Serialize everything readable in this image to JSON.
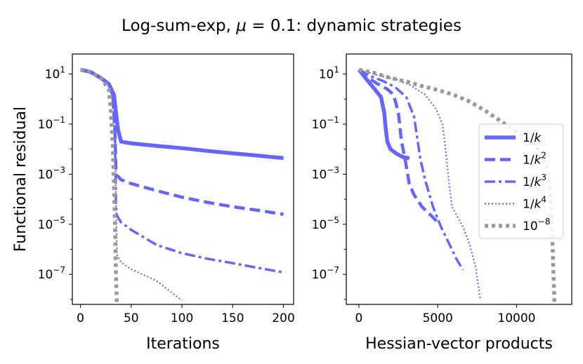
{
  "chart_data": {
    "title": "Log-sum-exp, μ = 0.1: dynamic strategies",
    "title_parts": {
      "lead": "Log-sum-exp, ",
      "mu": "μ",
      "rest": " = 0.1: dynamic strategies"
    },
    "series_color": "#6666ff",
    "baseline_color": "#999999",
    "panels": [
      {
        "type": "line",
        "yscale": "log",
        "xlabel": "Iterations",
        "ylabel": "Functional residual",
        "xlim": [
          -8,
          210
        ],
        "ylim_exp": [
          -8.2,
          1.8
        ],
        "xticks": [
          0,
          50,
          100,
          150,
          200
        ],
        "yticks_exp": [
          1,
          -1,
          -3,
          -5,
          -7
        ],
        "series": [
          {
            "name": "1/k",
            "points": [
              [
                0,
                15
              ],
              [
                10,
                12
              ],
              [
                20,
                7
              ],
              [
                28,
                4
              ],
              [
                33,
                1.5
              ],
              [
                35,
                0.3
              ],
              [
                37,
                0.06
              ],
              [
                40,
                0.02
              ],
              [
                50,
                0.017
              ],
              [
                75,
                0.0135
              ],
              [
                100,
                0.011
              ],
              [
                125,
                0.0085
              ],
              [
                150,
                0.0068
              ],
              [
                175,
                0.0055
              ],
              [
                200,
                0.0044
              ]
            ]
          },
          {
            "name": "1/k^2",
            "points": [
              [
                0,
                15
              ],
              [
                10,
                12
              ],
              [
                20,
                7
              ],
              [
                28,
                4
              ],
              [
                32,
                1.2
              ],
              [
                34,
                0.04
              ],
              [
                35,
                0.0015
              ],
              [
                36,
                0.0009
              ],
              [
                40,
                0.0006
              ],
              [
                50,
                0.00042
              ],
              [
                75,
                0.00022
              ],
              [
                100,
                0.00012
              ],
              [
                125,
                7.5e-05
              ],
              [
                150,
                5e-05
              ],
              [
                175,
                3.6e-05
              ],
              [
                200,
                2.5e-05
              ]
            ]
          },
          {
            "name": "1/k^3",
            "points": [
              [
                0,
                15
              ],
              [
                10,
                12
              ],
              [
                20,
                7
              ],
              [
                28,
                4
              ],
              [
                32,
                1.2
              ],
              [
                34,
                0.04
              ],
              [
                35,
                5e-05
              ],
              [
                36,
                2.2e-05
              ],
              [
                40,
                1.2e-05
              ],
              [
                50,
                6e-06
              ],
              [
                75,
                1.5e-06
              ],
              [
                100,
                7e-07
              ],
              [
                125,
                4.2e-07
              ],
              [
                150,
                2.8e-07
              ],
              [
                175,
                1.8e-07
              ],
              [
                200,
                1.2e-07
              ]
            ]
          },
          {
            "name": "1/k^4",
            "points": [
              [
                0,
                15
              ],
              [
                10,
                12
              ],
              [
                20,
                7
              ],
              [
                28,
                4
              ],
              [
                32,
                1.2
              ],
              [
                34,
                0.04
              ],
              [
                35,
                0.0001
              ],
              [
                36,
                6e-07
              ],
              [
                40,
                3e-07
              ],
              [
                50,
                1.6e-07
              ],
              [
                75,
                5.5e-08
              ],
              [
                100,
                9e-09
              ]
            ]
          },
          {
            "name": "10^-8",
            "points": [
              [
                0,
                15
              ],
              [
                10,
                12
              ],
              [
                20,
                7
              ],
              [
                28,
                2.5
              ],
              [
                30,
                0.3
              ],
              [
                32,
                0.01
              ],
              [
                34,
                1e-05
              ],
              [
                35,
                1e-07
              ],
              [
                36,
                4e-09
              ]
            ]
          }
        ]
      },
      {
        "type": "line",
        "yscale": "log",
        "xlabel": "Hessian-vector products",
        "ylabel": "",
        "xlim": [
          -800,
          13500
        ],
        "ylim_exp": [
          -8.2,
          1.8
        ],
        "xticks": [
          0,
          5000,
          10000
        ],
        "yticks_exp": [
          1,
          -1,
          -3,
          -5,
          -7
        ],
        "series": [
          {
            "name": "1/k",
            "points": [
              [
                0,
                15
              ],
              [
                500,
                6
              ],
              [
                1000,
                2.5
              ],
              [
                1400,
                1.2
              ],
              [
                1600,
                0.3
              ],
              [
                1700,
                0.07
              ],
              [
                1800,
                0.02
              ],
              [
                2000,
                0.01
              ],
              [
                2400,
                0.0065
              ],
              [
                2800,
                0.0048
              ],
              [
                3200,
                0.0043
              ]
            ]
          },
          {
            "name": "1/k^2",
            "points": [
              [
                0,
                15
              ],
              [
                600,
                7
              ],
              [
                1200,
                4
              ],
              [
                1800,
                2.5
              ],
              [
                2200,
                1.5
              ],
              [
                2500,
                0.3
              ],
              [
                2700,
                0.02
              ],
              [
                2900,
                0.005
              ],
              [
                3200,
                0.0004
              ],
              [
                3500,
                0.00015
              ],
              [
                4000,
                5e-05
              ],
              [
                4500,
                2.5e-05
              ],
              [
                5000,
                1.2e-05
              ]
            ]
          },
          {
            "name": "1/k^3",
            "points": [
              [
                0,
                15
              ],
              [
                800,
                8
              ],
              [
                1600,
                5
              ],
              [
                2300,
                3
              ],
              [
                3000,
                1.2
              ],
              [
                3500,
                0.2
              ],
              [
                3900,
                0.004
              ],
              [
                4200,
                0.0006
              ],
              [
                4700,
                5e-05
              ],
              [
                5200,
                8e-06
              ],
              [
                5700,
                1.8e-06
              ],
              [
                6200,
                4e-07
              ],
              [
                6600,
                1.5e-07
              ]
            ]
          },
          {
            "name": "1/k^4",
            "points": [
              [
                0,
                15
              ],
              [
                1200,
                9
              ],
              [
                2400,
                6
              ],
              [
                3300,
                3.5
              ],
              [
                4200,
                1.5
              ],
              [
                4900,
                0.4
              ],
              [
                5300,
                0.1
              ],
              [
                5500,
                0.01
              ],
              [
                5700,
                0.0006
              ],
              [
                5900,
                5e-05
              ],
              [
                6600,
                8e-06
              ],
              [
                7000,
                1.7e-06
              ],
              [
                7400,
                2e-07
              ],
              [
                7700,
                1e-08
              ]
            ]
          },
          {
            "name": "10^-8",
            "points": [
              [
                0,
                15
              ],
              [
                1000,
                11
              ],
              [
                2000,
                7
              ],
              [
                3000,
                5
              ],
              [
                4000,
                3.3
              ],
              [
                5000,
                2.3
              ],
              [
                6000,
                1.5
              ],
              [
                7000,
                0.8
              ],
              [
                8000,
                0.35
              ],
              [
                9000,
                0.13
              ],
              [
                10000,
                0.05
              ],
              [
                11000,
                0.02
              ],
              [
                11600,
                0.006
              ],
              [
                12000,
                0.0015
              ],
              [
                12200,
                5e-05
              ],
              [
                12300,
                6e-07
              ],
              [
                12400,
                8e-09
              ]
            ]
          }
        ]
      }
    ],
    "legend": {
      "placement": "right of second panel",
      "entries": [
        {
          "key": "1/k",
          "base": "1/",
          "var": "k",
          "sup": ""
        },
        {
          "key": "1/k^2",
          "base": "1/",
          "var": "k",
          "sup": "2"
        },
        {
          "key": "1/k^3",
          "base": "1/",
          "var": "k",
          "sup": "3"
        },
        {
          "key": "1/k^4",
          "base": "1/",
          "var": "k",
          "sup": "4"
        },
        {
          "key": "10^-8",
          "base": "10",
          "var": "",
          "sup": "−8"
        }
      ]
    }
  }
}
